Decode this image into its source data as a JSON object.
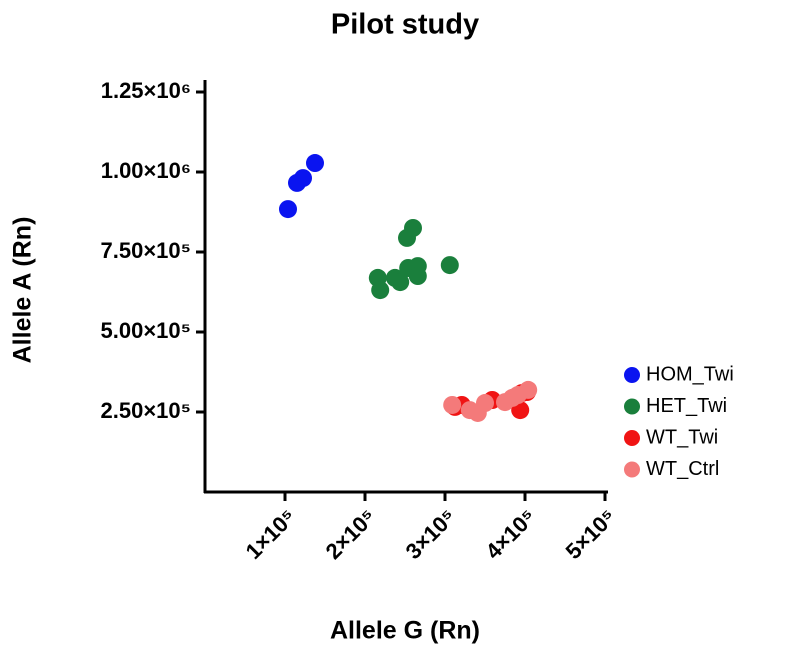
{
  "chart_data": {
    "type": "scatter",
    "title": "Pilot study",
    "x_label": "Allele G (Rn)",
    "y_label": "Allele A (Rn)",
    "xlim": [
      0,
      500000
    ],
    "ylim": [
      0,
      1250000
    ],
    "xticks": [
      {
        "value": 100000,
        "label": "1×10⁵"
      },
      {
        "value": 200000,
        "label": "2×10⁵"
      },
      {
        "value": 300000,
        "label": "3×10⁵"
      },
      {
        "value": 400000,
        "label": "4×10⁵"
      },
      {
        "value": 500000,
        "label": "5×10⁵"
      }
    ],
    "yticks": [
      {
        "value": 250000,
        "label": "2.50×10⁵"
      },
      {
        "value": 500000,
        "label": "5.00×10⁵"
      },
      {
        "value": 750000,
        "label": "7.50×10⁵"
      },
      {
        "value": 1000000,
        "label": "1.00×10⁶"
      },
      {
        "value": 1250000,
        "label": "1.25×10⁶"
      }
    ],
    "series": [
      {
        "name": "HOM_Twi",
        "color": "#0a14f0",
        "x": [
          103750,
          115000,
          122500,
          137500
        ],
        "values": [
          884000,
          966000,
          981000,
          1028000
        ]
      },
      {
        "name": "HET_Twi",
        "color": "#1a7f3c",
        "x": [
          216000,
          219000,
          237500,
          244000,
          252500,
          260000,
          254000,
          266000,
          266000,
          306000
        ],
        "values": [
          669000,
          631000,
          669000,
          656000,
          794000,
          825000,
          700000,
          706000,
          675000,
          709000
        ]
      },
      {
        "name": "WT_Twi",
        "color": "#f01414",
        "x": [
          312500,
          321000,
          359000,
          394000,
          396000,
          402500
        ],
        "values": [
          266000,
          272000,
          287500,
          256000,
          309000,
          312500
        ]
      },
      {
        "name": "WT_Ctrl",
        "color": "#f47a7a",
        "x": [
          309000,
          331000,
          341000,
          350000,
          375000,
          384000,
          391000,
          404000
        ],
        "values": [
          272000,
          256000,
          247000,
          278000,
          281000,
          294000,
          303000,
          319000
        ]
      }
    ]
  }
}
